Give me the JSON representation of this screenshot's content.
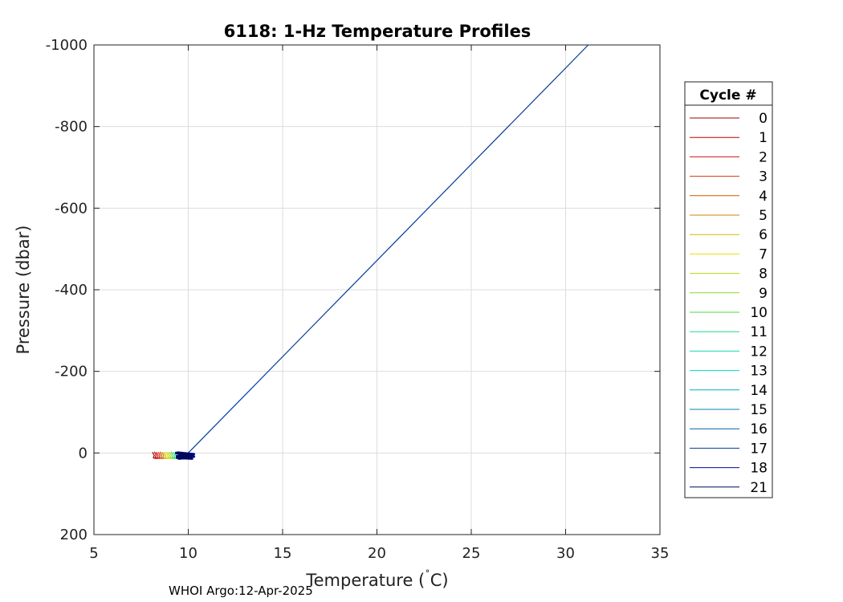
{
  "chart_data": {
    "type": "line",
    "title": "6118: 1-Hz Temperature Profiles",
    "xlabel": "Temperature (",
    "xlabel_degree": "˚",
    "xlabel_unit": "C)",
    "ylabel": "Pressure (dbar)",
    "xlim": [
      5,
      35
    ],
    "ylim": [
      200,
      -1000
    ],
    "y_reversed": true,
    "x_ticks": [
      5,
      10,
      15,
      20,
      25,
      30,
      35
    ],
    "y_ticks": [
      -1000,
      -800,
      -600,
      -400,
      -200,
      0,
      200
    ],
    "grid": true,
    "legend_position": "outside-right",
    "legend_title": "Cycle #",
    "series": [
      {
        "name": "0",
        "color": "#9e0000",
        "x": [
          8.1,
          8.2,
          8.15,
          8.3
        ],
        "y": [
          -2,
          6,
          12,
          14
        ]
      },
      {
        "name": "1",
        "color": "#c40000",
        "x": [
          8.2,
          8.3,
          8.25,
          8.4
        ],
        "y": [
          -3,
          5,
          11,
          14
        ]
      },
      {
        "name": "2",
        "color": "#d81010",
        "x": [
          8.3,
          8.4,
          8.35,
          8.5
        ],
        "y": [
          -2,
          6,
          12,
          14
        ]
      },
      {
        "name": "3",
        "color": "#d43010",
        "x": [
          8.4,
          8.5,
          8.45,
          8.6
        ],
        "y": [
          -2,
          5,
          11,
          14
        ]
      },
      {
        "name": "4",
        "color": "#cc5a00",
        "x": [
          8.5,
          8.6,
          8.55,
          8.7
        ],
        "y": [
          -3,
          6,
          12,
          14
        ]
      },
      {
        "name": "5",
        "color": "#c88a00",
        "x": [
          8.6,
          8.7,
          8.65,
          8.8
        ],
        "y": [
          -2,
          5,
          11,
          14
        ]
      },
      {
        "name": "6",
        "color": "#c8c000",
        "x": [
          8.7,
          8.8,
          8.75,
          8.9
        ],
        "y": [
          -2,
          6,
          12,
          14
        ]
      },
      {
        "name": "7",
        "color": "#e8e000",
        "x": [
          8.8,
          8.9,
          8.85,
          9.0
        ],
        "y": [
          -3,
          5,
          11,
          14
        ]
      },
      {
        "name": "8",
        "color": "#b8d800",
        "x": [
          8.9,
          9.0,
          8.95,
          9.1
        ],
        "y": [
          -2,
          6,
          12,
          14
        ]
      },
      {
        "name": "9",
        "color": "#88dd22",
        "x": [
          9.0,
          9.1,
          9.05,
          9.2
        ],
        "y": [
          -2,
          5,
          11,
          14
        ]
      },
      {
        "name": "10",
        "color": "#44dd44",
        "x": [
          9.1,
          9.2,
          9.15,
          9.3
        ],
        "y": [
          -3,
          6,
          12,
          14
        ]
      },
      {
        "name": "11",
        "color": "#22d888",
        "x": [
          9.2,
          9.3,
          9.25,
          9.4
        ],
        "y": [
          -2,
          5,
          11,
          14
        ]
      },
      {
        "name": "12",
        "color": "#11d8b0",
        "x": [
          9.3,
          9.4,
          9.35,
          9.5
        ],
        "y": [
          -2,
          6,
          12,
          14
        ]
      },
      {
        "name": "13",
        "color": "#00d8d8",
        "x": [
          9.4,
          9.5,
          9.45,
          9.6
        ],
        "y": [
          -3,
          5,
          11,
          14
        ]
      },
      {
        "name": "14",
        "color": "#00b0c8",
        "x": [
          9.5,
          9.6,
          9.55,
          9.7
        ],
        "y": [
          -2,
          6,
          12,
          14
        ]
      },
      {
        "name": "15",
        "color": "#0088b0",
        "x": [
          9.6,
          9.7,
          9.65,
          9.8
        ],
        "y": [
          -2,
          5,
          11,
          14
        ]
      },
      {
        "name": "16",
        "color": "#0060a8",
        "x": [
          9.5,
          9.9,
          10.2,
          9.7
        ],
        "y": [
          -1,
          8,
          13,
          4
        ]
      },
      {
        "name": "17",
        "color": "#003a98",
        "x": [
          10.0,
          31.2
        ],
        "y": [
          0,
          -1000
        ]
      },
      {
        "name": "18",
        "color": "#000a8a",
        "x": [
          9.4,
          10.3,
          9.5,
          10.3,
          9.4,
          10.2,
          9.6
        ],
        "y": [
          -1,
          3,
          6,
          9,
          12,
          14,
          2
        ]
      },
      {
        "name": "21",
        "color": "#00085a",
        "x": [
          9.3,
          10.2,
          9.4,
          10.1,
          9.5,
          10.2
        ],
        "y": [
          0,
          4,
          8,
          11,
          14,
          6
        ]
      }
    ]
  },
  "footer": "WHOI Argo:12-Apr-2025"
}
